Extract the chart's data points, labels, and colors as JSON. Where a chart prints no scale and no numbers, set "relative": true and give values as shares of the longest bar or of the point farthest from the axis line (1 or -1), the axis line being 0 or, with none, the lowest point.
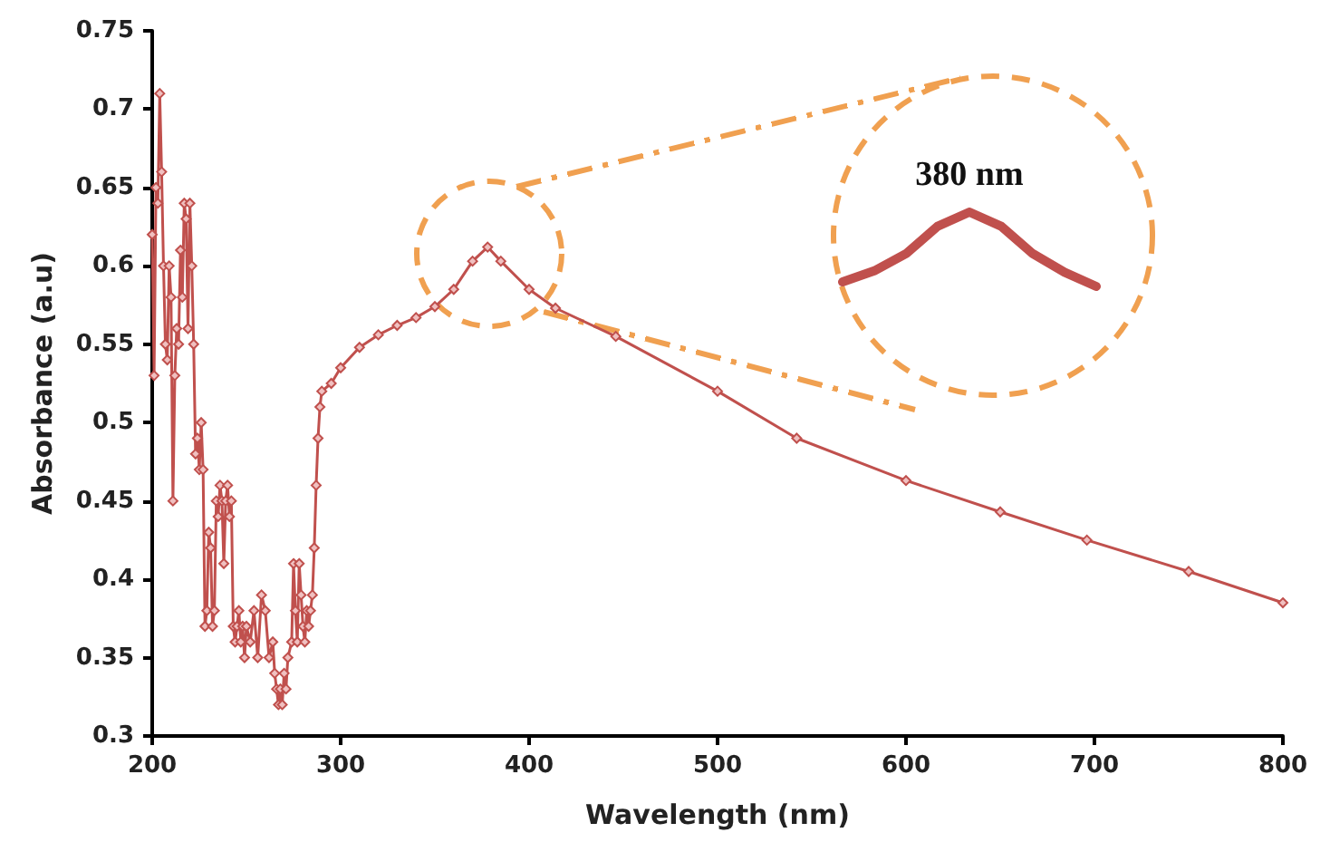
{
  "chart_data": [
    {
      "type": "line",
      "xlabel": "Wavelength (nm)",
      "ylabel": "Absorbance (a.u)",
      "x": [
        200,
        201,
        202,
        203,
        204,
        205,
        206,
        207,
        208,
        209,
        210,
        211,
        212,
        213,
        214,
        215,
        216,
        217,
        218,
        219,
        220,
        221,
        222,
        223,
        224,
        225,
        226,
        227,
        228,
        229,
        230,
        231,
        232,
        233,
        234,
        235,
        236,
        237,
        238,
        239,
        240,
        241,
        242,
        243,
        244,
        245,
        246,
        247,
        248,
        249,
        250,
        252,
        254,
        256,
        258,
        260,
        262,
        264,
        265,
        266,
        267,
        268,
        269,
        270,
        271,
        272,
        274,
        275,
        276,
        277,
        278,
        279,
        280,
        281,
        282,
        283,
        284,
        285,
        286,
        287,
        288,
        289,
        290,
        295,
        300,
        310,
        320,
        330,
        340,
        350,
        360,
        370,
        378,
        385,
        400,
        414,
        446,
        500,
        542,
        600,
        650,
        696,
        750,
        800
      ],
      "series": [
        {
          "color": "#c0504d",
          "values": [
            0.62,
            0.53,
            0.65,
            0.64,
            0.71,
            0.66,
            0.6,
            0.55,
            0.54,
            0.6,
            0.58,
            0.45,
            0.53,
            0.56,
            0.55,
            0.61,
            0.58,
            0.64,
            0.63,
            0.56,
            0.64,
            0.6,
            0.55,
            0.48,
            0.49,
            0.47,
            0.5,
            0.47,
            0.37,
            0.38,
            0.43,
            0.42,
            0.37,
            0.38,
            0.45,
            0.44,
            0.46,
            0.45,
            0.41,
            0.45,
            0.46,
            0.44,
            0.45,
            0.37,
            0.36,
            0.37,
            0.38,
            0.36,
            0.37,
            0.35,
            0.37,
            0.36,
            0.38,
            0.35,
            0.39,
            0.38,
            0.35,
            0.36,
            0.34,
            0.33,
            0.32,
            0.33,
            0.32,
            0.34,
            0.33,
            0.35,
            0.36,
            0.41,
            0.38,
            0.36,
            0.41,
            0.39,
            0.37,
            0.36,
            0.38,
            0.37,
            0.38,
            0.39,
            0.42,
            0.46,
            0.49,
            0.51,
            0.52,
            0.525,
            0.535,
            0.548,
            0.556,
            0.562,
            0.567,
            0.574,
            0.585,
            0.603,
            0.612,
            0.603,
            0.585,
            0.573,
            0.555,
            0.52,
            0.49,
            0.463,
            0.443,
            0.425,
            0.405,
            0.385
          ]
        }
      ],
      "xlim": [
        200,
        800
      ],
      "xticks": [
        200,
        300,
        400,
        500,
        600,
        700,
        800
      ],
      "ylim": [
        0.3,
        0.75
      ],
      "yticks": [
        0.3,
        0.35,
        0.4,
        0.45,
        0.5,
        0.55,
        0.6,
        0.65,
        0.7,
        0.75
      ],
      "grid": false,
      "marker": "diamond",
      "line_style": "solid"
    },
    {
      "type": "line",
      "relative": true,
      "categories": [
        null,
        null,
        null,
        null,
        null,
        null,
        null,
        null,
        null
      ],
      "series": [
        {
          "color": "#c0504d",
          "values": [
            0.06,
            0.21,
            0.44,
            0.81,
            1,
            0.81,
            0.44,
            0.19,
            0
          ]
        }
      ],
      "grid": false,
      "line_style": "solid",
      "annotations": [
        "380 nm"
      ]
    }
  ]
}
